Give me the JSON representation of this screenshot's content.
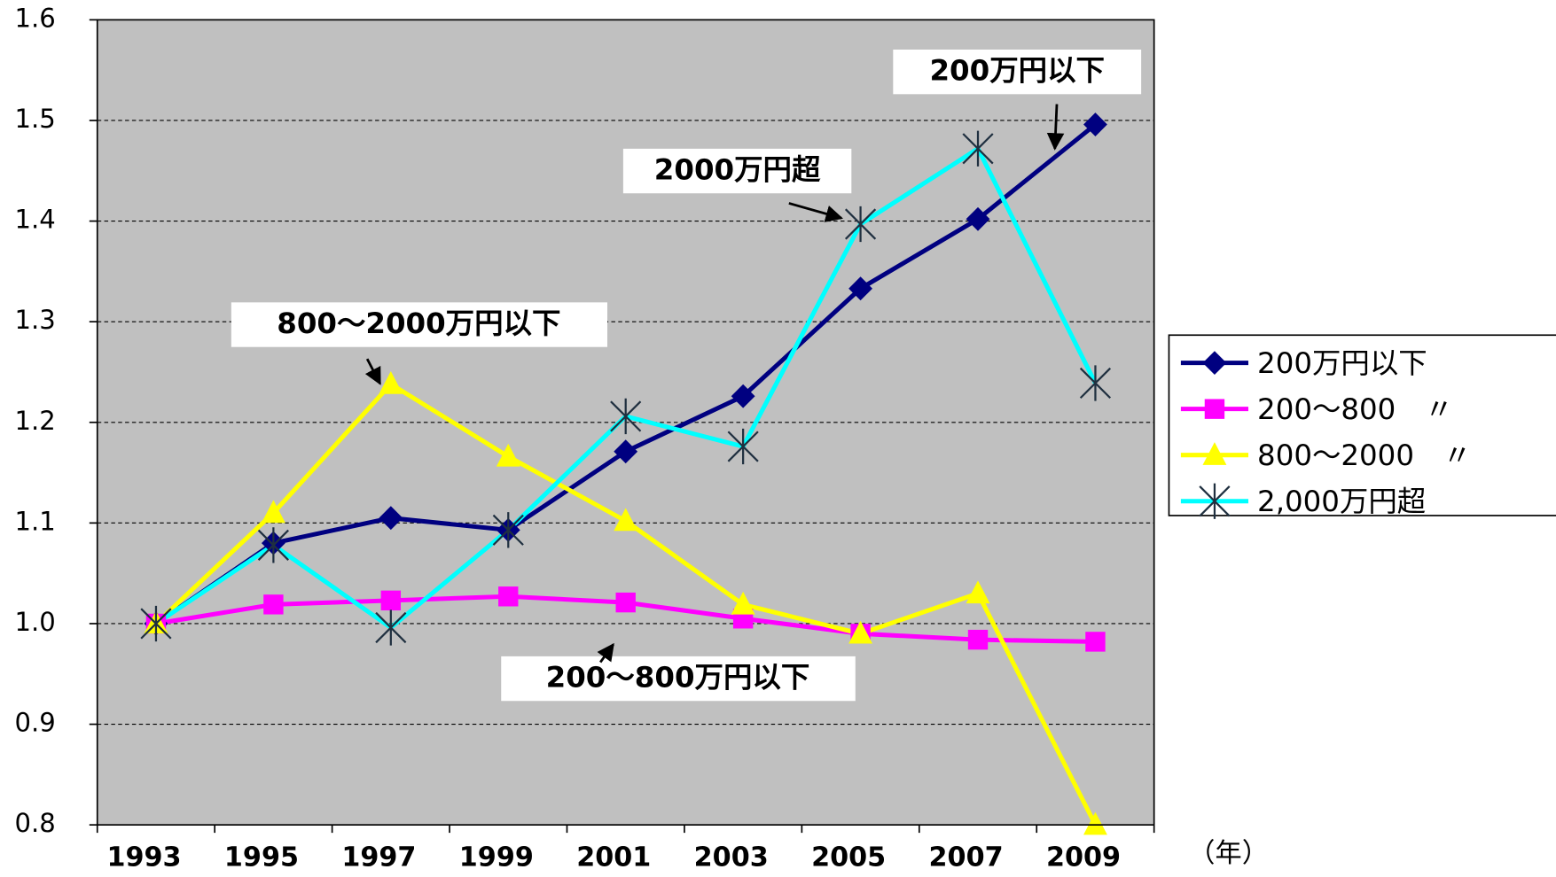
{
  "chart_data": {
    "type": "line",
    "categories": [
      "1993",
      "1995",
      "1997",
      "1999",
      "2001",
      "2003",
      "2005",
      "2007",
      "2009"
    ],
    "series": [
      {
        "name": "200万円以下",
        "color": "#000080",
        "marker": "diamond",
        "values": [
          1.0,
          1.08,
          1.105,
          1.093,
          1.171,
          1.226,
          1.333,
          1.402,
          1.496
        ]
      },
      {
        "name": "200～800　〃",
        "color": "#ff00ff",
        "marker": "square",
        "values": [
          1.0,
          1.019,
          1.023,
          1.027,
          1.021,
          1.005,
          0.99,
          0.984,
          0.982
        ]
      },
      {
        "name": "800～2000　〃",
        "color": "#ffff00",
        "marker": "triangle",
        "values": [
          1.0,
          1.11,
          1.238,
          1.166,
          1.102,
          1.019,
          0.99,
          1.03,
          0.8
        ]
      },
      {
        "name": "2,000万円超",
        "color": "#00ffff",
        "marker": "star",
        "values": [
          1.0,
          1.078,
          0.996,
          1.093,
          1.206,
          1.176,
          1.397,
          1.472,
          1.239
        ]
      }
    ],
    "ylim": [
      0.8,
      1.6
    ],
    "yticks": [
      0.8,
      0.9,
      {
        "value": 1.0,
        "label": "1.0"
      },
      1.1,
      1.2,
      1.3,
      1.4,
      1.5,
      1.6
    ],
    "grid": true,
    "x_unit": "（年）",
    "annotations": [
      "200万円以下",
      "2000万円超",
      "800～2000万円以下",
      "200～800万円以下"
    ],
    "legend": "right"
  }
}
